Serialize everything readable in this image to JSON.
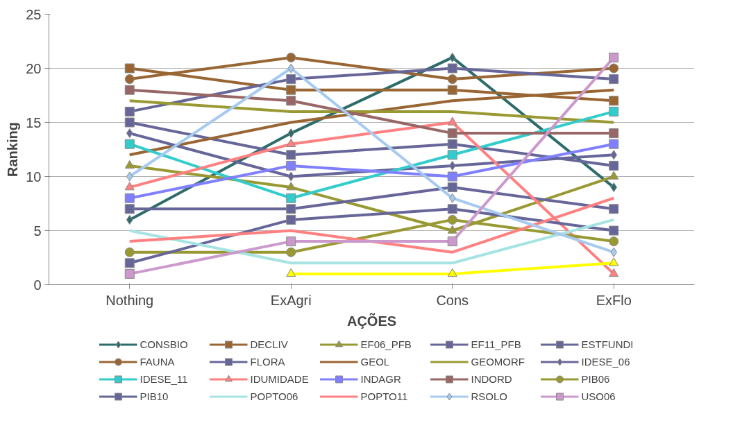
{
  "chart_data": {
    "type": "line",
    "xlabel": "AÇÕES",
    "ylabel": "Ranking",
    "categories": [
      "Nothing",
      "ExAgri",
      "Cons",
      "ExFlo"
    ],
    "ylim": [
      0,
      25
    ],
    "yticks": [
      0,
      5,
      10,
      15,
      20,
      25
    ],
    "grid": "y",
    "legend": "bottom",
    "series": [
      {
        "name": "CONSBIO",
        "color": "#2e6b6b",
        "marker": "diamond",
        "values": [
          6,
          14,
          21,
          9
        ]
      },
      {
        "name": "DECLIV",
        "color": "#996633",
        "marker": "square",
        "values": [
          20,
          18,
          18,
          17
        ]
      },
      {
        "name": "EF06_PFB",
        "color": "#999933",
        "marker": "triangle",
        "values": [
          11,
          9,
          5,
          10
        ]
      },
      {
        "name": "EF11_PFB",
        "color": "#666699",
        "marker": "square",
        "values": [
          7,
          7,
          9,
          7
        ]
      },
      {
        "name": "ESTFUNDI",
        "color": "#666699",
        "marker": "square",
        "values": [
          15,
          12,
          13,
          11
        ]
      },
      {
        "name": "FAUNA",
        "color": "#996633",
        "marker": "circle",
        "values": [
          19,
          21,
          19,
          20
        ]
      },
      {
        "name": "FLORA",
        "color": "#666699",
        "marker": "square",
        "values": [
          16,
          19,
          20,
          19
        ]
      },
      {
        "name": "GEOL",
        "color": "#996633",
        "marker": "none",
        "values": [
          12,
          15,
          17,
          18
        ]
      },
      {
        "name": "GEOMORF",
        "color": "#999933",
        "marker": "none",
        "values": [
          17,
          16,
          16,
          15
        ]
      },
      {
        "name": "IDESE_06",
        "color": "#666699",
        "marker": "diamond",
        "values": [
          14,
          10,
          11,
          12
        ]
      },
      {
        "name": "IDESE_11",
        "color": "#33cccc",
        "marker": "square",
        "values": [
          13,
          8,
          12,
          16
        ]
      },
      {
        "name": "IDUMIDADE",
        "color": "#ff8080",
        "marker": "triangle",
        "values": [
          9,
          13,
          15,
          1
        ]
      },
      {
        "name": "INDAGR",
        "color": "#8080ff",
        "marker": "square",
        "values": [
          8,
          11,
          10,
          13
        ]
      },
      {
        "name": "INDORD",
        "color": "#996666",
        "marker": "square",
        "values": [
          18,
          17,
          14,
          14
        ]
      },
      {
        "name": "PIB06",
        "color": "#999933",
        "marker": "circle",
        "values": [
          3,
          3,
          6,
          4
        ]
      },
      {
        "name": "PIB10",
        "color": "#666699",
        "marker": "square",
        "values": [
          2,
          6,
          7,
          5
        ]
      },
      {
        "name": "POPTO06",
        "color": "#a6e3e3",
        "marker": "none",
        "values": [
          5,
          2,
          2,
          6
        ]
      },
      {
        "name": "POPTO11",
        "color": "#ff8080",
        "marker": "none",
        "values": [
          4,
          5,
          3,
          8
        ]
      },
      {
        "name": "RSOLO",
        "color": "#a6caf0",
        "marker": "diamond",
        "values": [
          10,
          20,
          8,
          3
        ]
      },
      {
        "name": "USO06",
        "color": "#cc99cc",
        "marker": "square",
        "values": [
          1,
          4,
          4,
          21
        ]
      },
      {
        "color": "#ffff00",
        "marker": "triangle",
        "values": [
          null,
          1,
          1,
          2
        ]
      }
    ]
  }
}
